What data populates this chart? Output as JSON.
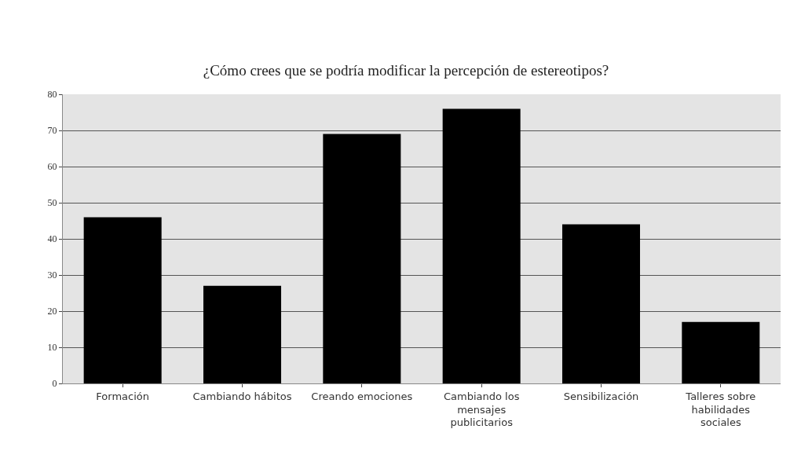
{
  "chart_data": {
    "type": "bar",
    "title": "¿Cómo crees que se podría modificar la percepción de estereotipos?",
    "categories": [
      "Formación",
      "Cambiando hábitos",
      "Creando emociones",
      "Cambiando los mensajes publicitarios",
      "Sensibilización",
      "Talleres sobre habilidades sociales"
    ],
    "values": [
      46,
      27,
      69,
      76,
      44,
      17
    ],
    "color": "#000000",
    "ylim": [
      0,
      80
    ],
    "yticks": [
      0,
      10,
      20,
      30,
      40,
      50,
      60,
      70,
      80
    ],
    "grid": "y",
    "legend": false
  }
}
